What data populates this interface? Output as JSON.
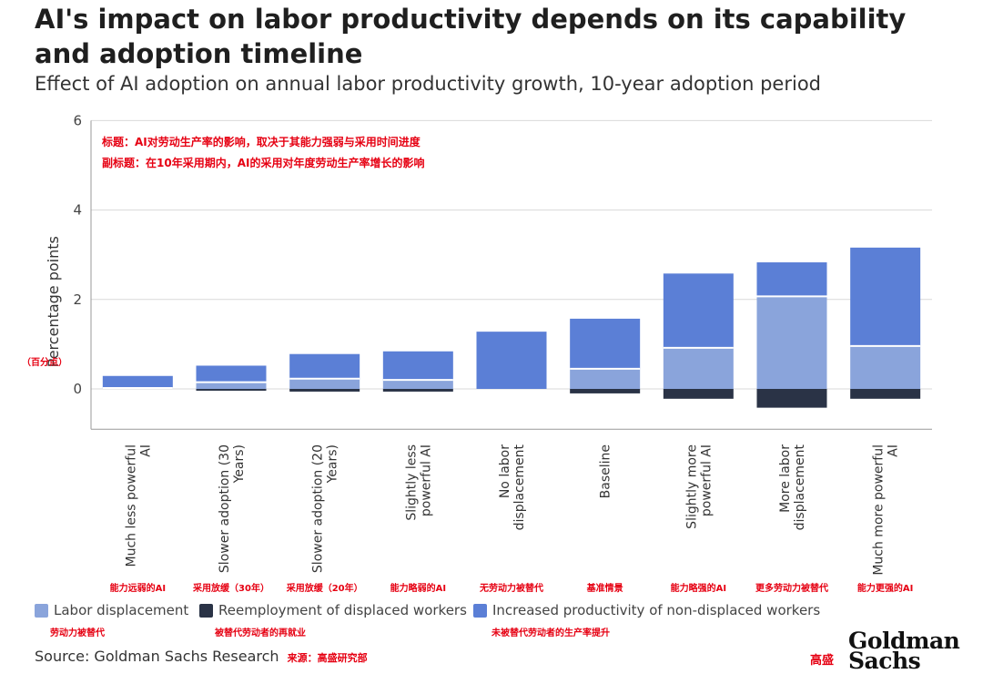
{
  "title": "AI's impact on labor productivity depends on its capability and adoption timeline",
  "subtitle": "Effect of AI adoption on annual labor productivity growth, 10-year adoption period",
  "annotations": {
    "title_cn": "标题：AI对劳动生产率的影响，取决于其能力强弱与采用时间进度",
    "subtitle_cn": "副标题：在10年采用期内，AI的采用对年度劳动生产率增长的影响",
    "ylabel_cn": "（百分点）",
    "source_cn": "来源：高盛研究部",
    "logo_cn": "高盛"
  },
  "source": "Source: Goldman Sachs Research",
  "logo": {
    "line1": "Goldman",
    "line2": "Sachs"
  },
  "chart_data": {
    "type": "bar",
    "stacked": true,
    "ylabel": "Percentage points",
    "ylim": [
      -0.9,
      6
    ],
    "yticks": [
      0,
      2,
      4,
      6
    ],
    "grid": true,
    "categories": [
      "Much less powerful AI",
      "Slower adoption (30 Years)",
      "Slower adoption (20 Years)",
      "Slightly less powerful AI",
      "No labor displacement",
      "Baseline",
      "Slightly more powerful AI",
      "More labor displacement",
      "Much more powerful AI"
    ],
    "categories_cn": [
      "能力远弱的AI",
      "采用放缓（30年）",
      "采用放缓（20年）",
      "能力略弱的AI",
      "无劳动力被替代",
      "基准情景",
      "能力略强的AI",
      "更多劳动力被替代",
      "能力更强的AI"
    ],
    "series": [
      {
        "name": "Labor displacement",
        "name_cn": "劳动力被替代",
        "color": "#8aa4db",
        "values": [
          0.02,
          0.15,
          0.23,
          0.2,
          0.0,
          0.45,
          0.92,
          2.07,
          0.96
        ]
      },
      {
        "name": "Reemployment of displaced workers",
        "name_cn": "被替代劳动者的再就业",
        "color": "#2a3346",
        "values": [
          0.0,
          -0.04,
          -0.06,
          -0.06,
          0.0,
          -0.1,
          -0.22,
          -0.42,
          -0.22
        ]
      },
      {
        "name": "Increased productivity of non-displaced workers",
        "name_cn": "未被替代劳动者的生产率提升",
        "color": "#5b7fd6",
        "values": [
          0.27,
          0.37,
          0.55,
          0.64,
          1.28,
          1.12,
          1.66,
          0.76,
          2.2
        ]
      }
    ]
  }
}
